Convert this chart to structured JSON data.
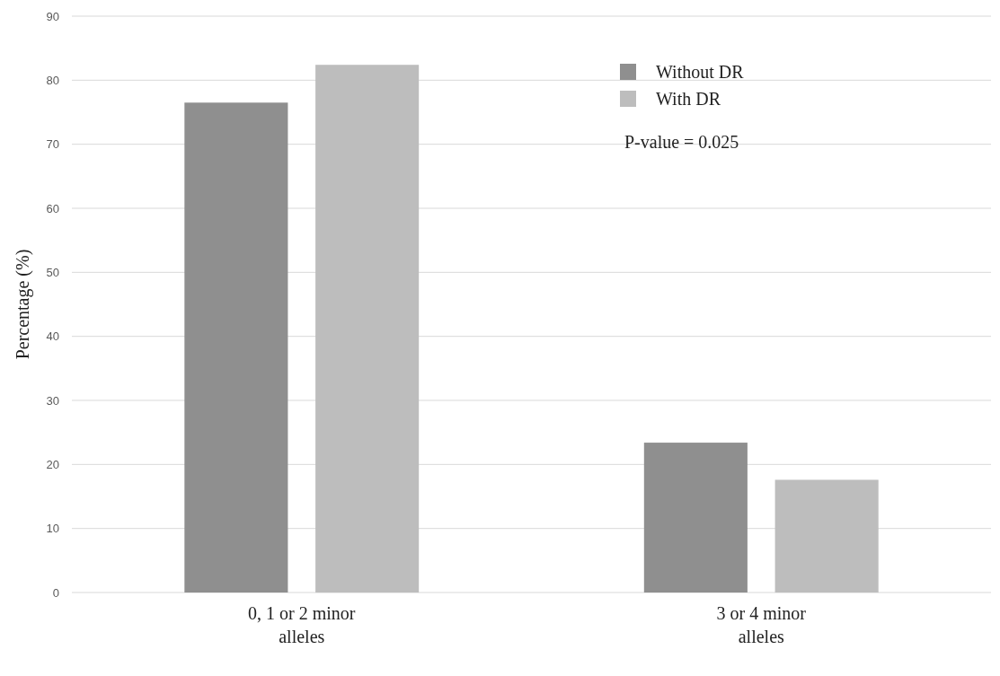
{
  "chart_data": {
    "type": "bar",
    "categories": [
      "0, 1 or 2 minor alleles",
      "3 or 4 minor alleles"
    ],
    "series": [
      {
        "name": "Without DR",
        "color": "#8f8f8f",
        "values": [
          76.5,
          23.4
        ]
      },
      {
        "name": "With DR",
        "color": "#bdbdbd",
        "values": [
          82.4,
          17.6
        ]
      }
    ],
    "ylabel": "Percentage (%)",
    "ylim": [
      0,
      90
    ],
    "yticks": [
      0,
      10,
      20,
      30,
      40,
      50,
      60,
      70,
      80,
      90
    ],
    "grid": "y",
    "legend": "top right",
    "annotations": [
      "P-value = 0.025"
    ]
  }
}
